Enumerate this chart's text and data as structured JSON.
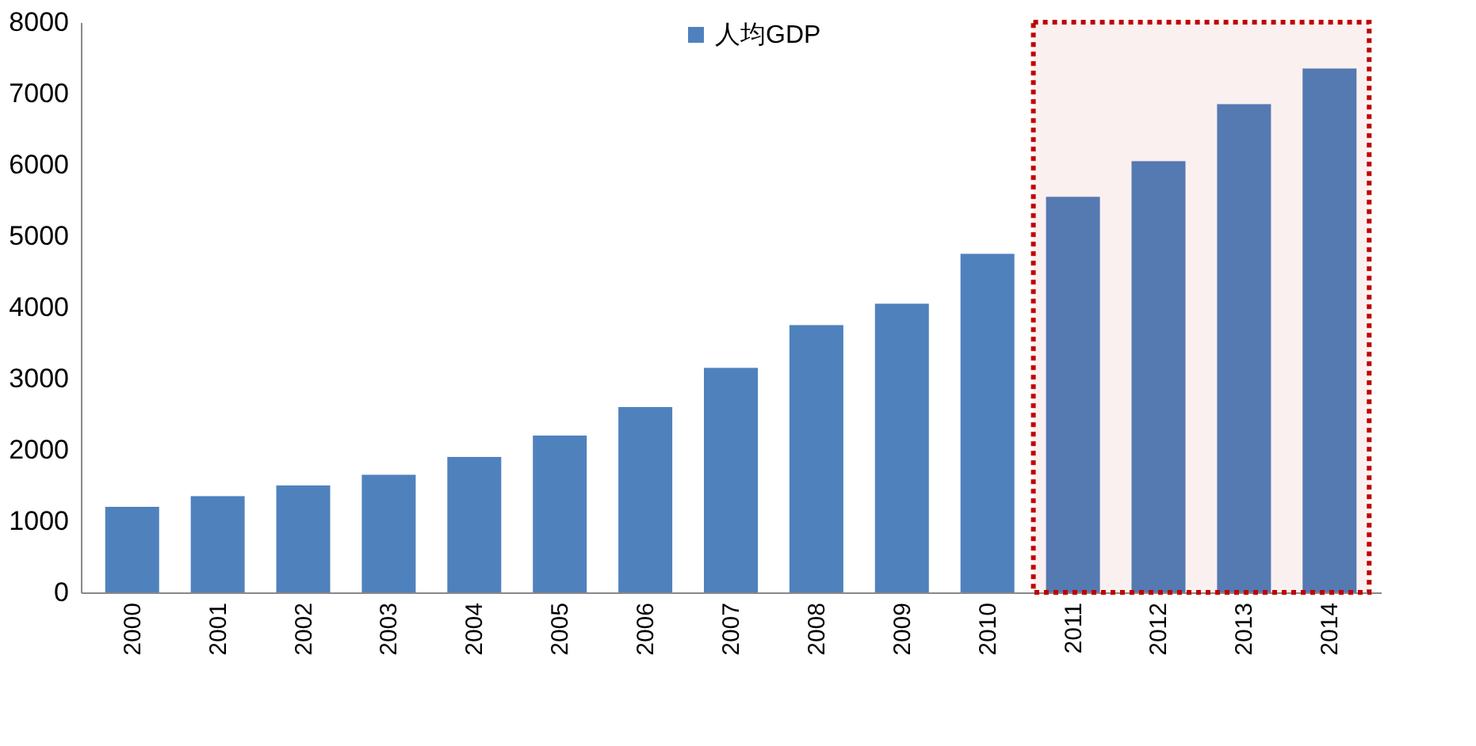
{
  "chart_data": {
    "type": "bar",
    "categories": [
      "2000",
      "2001",
      "2002",
      "2003",
      "2004",
      "2005",
      "2006",
      "2007",
      "2008",
      "2009",
      "2010",
      "2011",
      "2012",
      "2013",
      "2014"
    ],
    "series": [
      {
        "name": "人均GDP",
        "color": "#4f81bd",
        "values": [
          1200,
          1350,
          1500,
          1650,
          1900,
          2200,
          2600,
          3150,
          3750,
          4050,
          4750,
          5550,
          6050,
          6850,
          7350
        ]
      }
    ],
    "ylim": [
      0,
      8000
    ],
    "yticks": [
      0,
      1000,
      2000,
      3000,
      4000,
      5000,
      6000,
      7000,
      8000
    ],
    "legend": "top",
    "bands": [
      {
        "axis": "x",
        "from": "2011",
        "to": "2014",
        "color": "#c00000"
      }
    ]
  }
}
